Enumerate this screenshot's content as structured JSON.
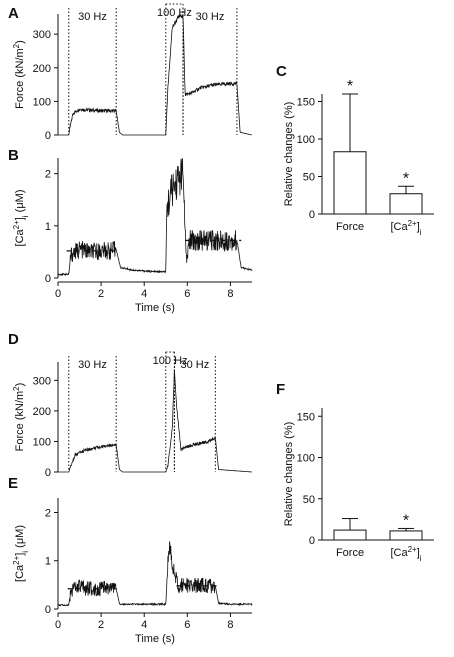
{
  "figure": {
    "panel_letters": [
      "A",
      "B",
      "C",
      "D",
      "E",
      "F"
    ]
  },
  "chart_data": [
    {
      "id": "A",
      "type": "line",
      "title": "",
      "xlabel": "",
      "ylabel": "Force (kN/m²)",
      "ylabel_parts": [
        "Force (kN/m",
        "2",
        ")"
      ],
      "xlim": [
        0,
        9
      ],
      "ylim": [
        0,
        360
      ],
      "yticks": [
        0,
        100,
        200,
        300
      ],
      "yticklabels": [
        "0",
        "100",
        "200",
        "300"
      ],
      "stimulus_labels": [
        "30 Hz",
        "100 Hz",
        "30 Hz"
      ],
      "stimulus_epochs": [
        [
          0.5,
          2.7
        ],
        [
          5.0,
          5.8
        ],
        [
          5.8,
          8.3
        ]
      ],
      "series": [
        {
          "x": [
            0,
            0.5,
            0.55,
            0.7,
            1.0,
            1.5,
            2.0,
            2.5,
            2.7,
            2.85,
            3,
            5,
            5.1,
            5.3,
            5.6,
            5.8,
            5.9,
            6.2,
            6.6,
            7.2,
            8.0,
            8.3,
            8.45,
            9
          ],
          "y": [
            0,
            0,
            20,
            65,
            77,
            74,
            72,
            72,
            72,
            8,
            0,
            0,
            140,
            320,
            352,
            356,
            120,
            125,
            140,
            149,
            153,
            153,
            8,
            0
          ]
        }
      ]
    },
    {
      "id": "B",
      "type": "line",
      "title": "",
      "xlabel": "Time (s)",
      "ylabel": "[Ca²⁺]ᵢ (μM)",
      "ylabel_parts": [
        "[Ca",
        "2+",
        "]",
        "i",
        " (μM)"
      ],
      "xlim": [
        0,
        9
      ],
      "ylim": [
        0,
        2.3
      ],
      "xticks": [
        0,
        2,
        4,
        6,
        8
      ],
      "xticklabels": [
        "0",
        "2",
        "4",
        "6",
        "8"
      ],
      "yticks": [
        0,
        1,
        2
      ],
      "yticklabels": [
        "0",
        "1",
        "2"
      ],
      "mean_markers": [
        {
          "y": 0.52,
          "x": [
            0.4,
            2.9
          ]
        },
        {
          "y": 0.72,
          "x": [
            5.9,
            8.5
          ]
        }
      ],
      "series": [
        {
          "x": [
            0,
            0.5,
            0.6,
            1.0,
            1.5,
            2.0,
            2.5,
            2.7,
            2.9,
            3.5,
            4.5,
            5.0,
            5.05,
            5.3,
            5.6,
            5.8,
            5.95,
            6.1,
            7.0,
            8.0,
            8.3,
            8.5,
            9
          ],
          "y": [
            0.07,
            0.07,
            0.45,
            0.55,
            0.5,
            0.52,
            0.52,
            0.55,
            0.2,
            0.15,
            0.12,
            0.12,
            1.35,
            1.7,
            1.9,
            2.0,
            0.3,
            0.72,
            0.72,
            0.72,
            0.72,
            0.2,
            0.15
          ]
        }
      ]
    },
    {
      "id": "C",
      "type": "bar",
      "title": "",
      "xlabel": "",
      "ylabel": "Relative changes (%)",
      "categories": [
        "Force",
        "[Ca²⁺]ᵢ"
      ],
      "category_parts": [
        [
          "Force"
        ],
        [
          "[Ca",
          "2+",
          "]",
          "i"
        ]
      ],
      "values": [
        83,
        27
      ],
      "errors": [
        77,
        10
      ],
      "significance": [
        "*",
        "*"
      ],
      "ylim": [
        0,
        160
      ],
      "yticks": [
        0,
        50,
        100,
        150
      ],
      "yticklabels": [
        "0",
        "50",
        "100",
        "150"
      ]
    },
    {
      "id": "D",
      "type": "line",
      "title": "",
      "xlabel": "",
      "ylabel": "Force (kN/m²)",
      "ylabel_parts": [
        "Force (kN/m",
        "2",
        ")"
      ],
      "xlim": [
        0,
        9
      ],
      "ylim": [
        0,
        360
      ],
      "yticks": [
        0,
        100,
        200,
        300
      ],
      "yticklabels": [
        "0",
        "100",
        "200",
        "300"
      ],
      "stimulus_labels": [
        "30 Hz",
        "100 Hz",
        "30 Hz"
      ],
      "stimulus_epochs": [
        [
          0.5,
          2.7
        ],
        [
          5.0,
          5.4
        ],
        [
          5.4,
          7.3
        ]
      ],
      "series": [
        {
          "x": [
            0,
            0.5,
            0.6,
            0.8,
            1.2,
            1.8,
            2.4,
            2.7,
            2.85,
            3,
            5,
            5.1,
            5.3,
            5.4,
            5.5,
            5.7,
            6.2,
            7.0,
            7.3,
            7.45,
            9
          ],
          "y": [
            0,
            0,
            20,
            55,
            70,
            80,
            87,
            90,
            8,
            0,
            0,
            20,
            140,
            335,
            220,
            75,
            88,
            100,
            112,
            8,
            0
          ]
        }
      ]
    },
    {
      "id": "E",
      "type": "line",
      "title": "",
      "xlabel": "Time (s)",
      "ylabel": "[Ca²⁺]ᵢ (μM)",
      "ylabel_parts": [
        "[Ca",
        "2+",
        "]",
        "i",
        " (μM)"
      ],
      "xlim": [
        0,
        9
      ],
      "ylim": [
        0,
        2.3
      ],
      "xticks": [
        0,
        2,
        4,
        6,
        8
      ],
      "xticklabels": [
        "0",
        "2",
        "4",
        "6",
        "8"
      ],
      "yticks": [
        0,
        1,
        2
      ],
      "yticklabels": [
        "0",
        "1",
        "2"
      ],
      "mean_markers": [
        {
          "y": 0.42,
          "x": [
            0.45,
            2.8
          ]
        },
        {
          "y": 0.48,
          "x": [
            5.5,
            7.5
          ]
        }
      ],
      "series": [
        {
          "x": [
            0,
            0.5,
            0.6,
            1.0,
            1.5,
            2.0,
            2.5,
            2.7,
            2.85,
            3.5,
            4.5,
            5.0,
            5.1,
            5.2,
            5.4,
            5.6,
            6.0,
            7.0,
            7.3,
            7.45,
            8.0,
            9
          ],
          "y": [
            0.08,
            0.08,
            0.4,
            0.45,
            0.42,
            0.42,
            0.42,
            0.42,
            0.1,
            0.1,
            0.1,
            0.1,
            0.9,
            1.35,
            0.7,
            0.5,
            0.48,
            0.48,
            0.48,
            0.12,
            0.1,
            0.1
          ]
        }
      ]
    },
    {
      "id": "F",
      "type": "bar",
      "title": "",
      "xlabel": "",
      "ylabel": "Relative changes (%)",
      "categories": [
        "Force",
        "[Ca²⁺]ᵢ"
      ],
      "category_parts": [
        [
          "Force"
        ],
        [
          "[Ca",
          "2+",
          "]",
          "i"
        ]
      ],
      "values": [
        12,
        11
      ],
      "errors": [
        14,
        3
      ],
      "significance": [
        "",
        "*"
      ],
      "ylim": [
        0,
        160
      ],
      "yticks": [
        0,
        50,
        100,
        150
      ],
      "yticklabels": [
        "0",
        "50",
        "100",
        "150"
      ]
    }
  ]
}
